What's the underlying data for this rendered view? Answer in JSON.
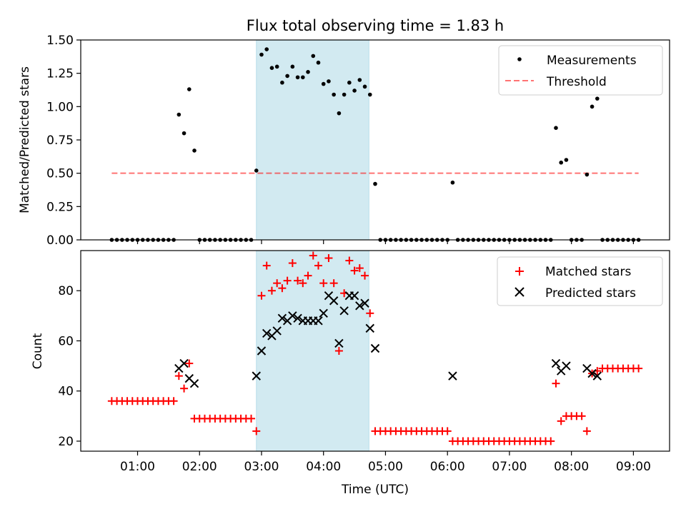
{
  "figure": {
    "title": "Flux total observing time = 1.83 h",
    "xlabel": "Time (UTC)",
    "x_ticks": [
      "01:00",
      "02:00",
      "03:00",
      "04:00",
      "05:00",
      "06:00",
      "07:00",
      "08:00",
      "09:00"
    ],
    "colors": {
      "highlight": "#add8e6",
      "threshold": "#ff0000",
      "measurement": "#000000",
      "matched": "#ff0000",
      "predicted": "#000000"
    }
  },
  "chart_data": [
    {
      "type": "scatter",
      "name": "ratio",
      "ylabel": "Matched/Predicted stars",
      "ylim": [
        0,
        1.5
      ],
      "y_ticks": [
        "0.00",
        "0.25",
        "0.50",
        "0.75",
        "1.00",
        "1.25",
        "1.50"
      ],
      "legend": {
        "placement": "upper-right",
        "entries": [
          "Measurements",
          "Threshold"
        ]
      },
      "highlight_span": {
        "x_start": "02:55",
        "x_end": "04:44"
      },
      "threshold": {
        "name": "Threshold",
        "y": 0.5,
        "x_range": [
          "00:35",
          "09:05"
        ]
      },
      "series": [
        {
          "name": "Measurements",
          "marker": "dot",
          "points": [
            [
              "00:35",
              0
            ],
            [
              "00:40",
              0
            ],
            [
              "00:45",
              0
            ],
            [
              "00:50",
              0
            ],
            [
              "00:55",
              0
            ],
            [
              "01:00",
              0
            ],
            [
              "01:05",
              0
            ],
            [
              "01:10",
              0
            ],
            [
              "01:15",
              0
            ],
            [
              "01:20",
              0
            ],
            [
              "01:25",
              0
            ],
            [
              "01:30",
              0
            ],
            [
              "01:35",
              0
            ],
            [
              "01:40",
              0.94
            ],
            [
              "01:45",
              0.8
            ],
            [
              "01:50",
              1.13
            ],
            [
              "01:55",
              0.67
            ],
            [
              "02:00",
              0
            ],
            [
              "02:05",
              0
            ],
            [
              "02:10",
              0
            ],
            [
              "02:15",
              0
            ],
            [
              "02:20",
              0
            ],
            [
              "02:25",
              0
            ],
            [
              "02:30",
              0
            ],
            [
              "02:35",
              0
            ],
            [
              "02:40",
              0
            ],
            [
              "02:45",
              0
            ],
            [
              "02:50",
              0
            ],
            [
              "02:55",
              0.52
            ],
            [
              "03:00",
              1.39
            ],
            [
              "03:05",
              1.43
            ],
            [
              "03:10",
              1.29
            ],
            [
              "03:15",
              1.3
            ],
            [
              "03:20",
              1.18
            ],
            [
              "03:25",
              1.23
            ],
            [
              "03:30",
              1.3
            ],
            [
              "03:35",
              1.22
            ],
            [
              "03:40",
              1.22
            ],
            [
              "03:45",
              1.26
            ],
            [
              "03:50",
              1.38
            ],
            [
              "03:55",
              1.33
            ],
            [
              "04:00",
              1.17
            ],
            [
              "04:05",
              1.19
            ],
            [
              "04:10",
              1.09
            ],
            [
              "04:15",
              0.95
            ],
            [
              "04:20",
              1.09
            ],
            [
              "04:25",
              1.18
            ],
            [
              "04:30",
              1.12
            ],
            [
              "04:35",
              1.2
            ],
            [
              "04:40",
              1.15
            ],
            [
              "04:45",
              1.09
            ],
            [
              "04:50",
              0.42
            ],
            [
              "04:55",
              0
            ],
            [
              "05:00",
              0
            ],
            [
              "05:05",
              0
            ],
            [
              "05:10",
              0
            ],
            [
              "05:15",
              0
            ],
            [
              "05:20",
              0
            ],
            [
              "05:25",
              0
            ],
            [
              "05:30",
              0
            ],
            [
              "05:35",
              0
            ],
            [
              "05:40",
              0
            ],
            [
              "05:45",
              0
            ],
            [
              "05:50",
              0
            ],
            [
              "05:55",
              0
            ],
            [
              "06:00",
              0
            ],
            [
              "06:05",
              0.43
            ],
            [
              "06:10",
              0
            ],
            [
              "06:15",
              0
            ],
            [
              "06:20",
              0
            ],
            [
              "06:25",
              0
            ],
            [
              "06:30",
              0
            ],
            [
              "06:35",
              0
            ],
            [
              "06:40",
              0
            ],
            [
              "06:45",
              0
            ],
            [
              "06:50",
              0
            ],
            [
              "06:55",
              0
            ],
            [
              "07:00",
              0
            ],
            [
              "07:05",
              0
            ],
            [
              "07:10",
              0
            ],
            [
              "07:15",
              0
            ],
            [
              "07:20",
              0
            ],
            [
              "07:25",
              0
            ],
            [
              "07:30",
              0
            ],
            [
              "07:35",
              0
            ],
            [
              "07:40",
              0
            ],
            [
              "07:45",
              0.84
            ],
            [
              "07:50",
              0.58
            ],
            [
              "07:55",
              0.6
            ],
            [
              "08:00",
              0
            ],
            [
              "08:05",
              0
            ],
            [
              "08:10",
              0
            ],
            [
              "08:15",
              0.49
            ],
            [
              "08:20",
              1.0
            ],
            [
              "08:25",
              1.06
            ],
            [
              "08:30",
              0
            ],
            [
              "08:35",
              0
            ],
            [
              "08:40",
              0
            ],
            [
              "08:45",
              0
            ],
            [
              "08:50",
              0
            ],
            [
              "08:55",
              0
            ],
            [
              "09:00",
              0
            ],
            [
              "09:05",
              0
            ]
          ]
        }
      ]
    },
    {
      "type": "scatter",
      "name": "counts",
      "ylabel": "Count",
      "ylim": [
        16,
        96
      ],
      "y_ticks": [
        "20",
        "40",
        "60",
        "80"
      ],
      "legend": {
        "placement": "upper-right",
        "entries": [
          "Matched stars",
          "Predicted stars"
        ]
      },
      "highlight_span": {
        "x_start": "02:55",
        "x_end": "04:44"
      },
      "series": [
        {
          "name": "Matched stars",
          "marker": "plus",
          "points": [
            [
              "00:35",
              36
            ],
            [
              "00:40",
              36
            ],
            [
              "00:45",
              36
            ],
            [
              "00:50",
              36
            ],
            [
              "00:55",
              36
            ],
            [
              "01:00",
              36
            ],
            [
              "01:05",
              36
            ],
            [
              "01:10",
              36
            ],
            [
              "01:15",
              36
            ],
            [
              "01:20",
              36
            ],
            [
              "01:25",
              36
            ],
            [
              "01:30",
              36
            ],
            [
              "01:35",
              36
            ],
            [
              "01:40",
              46
            ],
            [
              "01:45",
              41
            ],
            [
              "01:50",
              51
            ],
            [
              "01:55",
              29
            ],
            [
              "02:00",
              29
            ],
            [
              "02:05",
              29
            ],
            [
              "02:10",
              29
            ],
            [
              "02:15",
              29
            ],
            [
              "02:20",
              29
            ],
            [
              "02:25",
              29
            ],
            [
              "02:30",
              29
            ],
            [
              "02:35",
              29
            ],
            [
              "02:40",
              29
            ],
            [
              "02:45",
              29
            ],
            [
              "02:50",
              29
            ],
            [
              "02:55",
              24
            ],
            [
              "03:00",
              78
            ],
            [
              "03:05",
              90
            ],
            [
              "03:10",
              80
            ],
            [
              "03:15",
              83
            ],
            [
              "03:20",
              81
            ],
            [
              "03:25",
              84
            ],
            [
              "03:30",
              91
            ],
            [
              "03:35",
              84
            ],
            [
              "03:40",
              83
            ],
            [
              "03:45",
              86
            ],
            [
              "03:50",
              94
            ],
            [
              "03:55",
              90
            ],
            [
              "04:00",
              83
            ],
            [
              "04:05",
              93
            ],
            [
              "04:10",
              83
            ],
            [
              "04:15",
              56
            ],
            [
              "04:20",
              79
            ],
            [
              "04:25",
              92
            ],
            [
              "04:30",
              88
            ],
            [
              "04:35",
              89
            ],
            [
              "04:40",
              86
            ],
            [
              "04:45",
              71
            ],
            [
              "04:50",
              24
            ],
            [
              "04:55",
              24
            ],
            [
              "05:00",
              24
            ],
            [
              "05:05",
              24
            ],
            [
              "05:10",
              24
            ],
            [
              "05:15",
              24
            ],
            [
              "05:20",
              24
            ],
            [
              "05:25",
              24
            ],
            [
              "05:30",
              24
            ],
            [
              "05:35",
              24
            ],
            [
              "05:40",
              24
            ],
            [
              "05:45",
              24
            ],
            [
              "05:50",
              24
            ],
            [
              "05:55",
              24
            ],
            [
              "06:00",
              24
            ],
            [
              "06:05",
              20
            ],
            [
              "06:10",
              20
            ],
            [
              "06:15",
              20
            ],
            [
              "06:20",
              20
            ],
            [
              "06:25",
              20
            ],
            [
              "06:30",
              20
            ],
            [
              "06:35",
              20
            ],
            [
              "06:40",
              20
            ],
            [
              "06:45",
              20
            ],
            [
              "06:50",
              20
            ],
            [
              "06:55",
              20
            ],
            [
              "07:00",
              20
            ],
            [
              "07:05",
              20
            ],
            [
              "07:10",
              20
            ],
            [
              "07:15",
              20
            ],
            [
              "07:20",
              20
            ],
            [
              "07:25",
              20
            ],
            [
              "07:30",
              20
            ],
            [
              "07:35",
              20
            ],
            [
              "07:40",
              20
            ],
            [
              "07:45",
              43
            ],
            [
              "07:50",
              28
            ],
            [
              "07:55",
              30
            ],
            [
              "08:00",
              30
            ],
            [
              "08:05",
              30
            ],
            [
              "08:10",
              30
            ],
            [
              "08:15",
              24
            ],
            [
              "08:20",
              47
            ],
            [
              "08:25",
              48
            ],
            [
              "08:30",
              49
            ],
            [
              "08:35",
              49
            ],
            [
              "08:40",
              49
            ],
            [
              "08:45",
              49
            ],
            [
              "08:50",
              49
            ],
            [
              "08:55",
              49
            ],
            [
              "09:00",
              49
            ],
            [
              "09:05",
              49
            ]
          ]
        },
        {
          "name": "Predicted stars",
          "marker": "x",
          "points": [
            [
              "01:40",
              49
            ],
            [
              "01:45",
              51
            ],
            [
              "01:50",
              45
            ],
            [
              "01:55",
              43
            ],
            [
              "02:55",
              46
            ],
            [
              "03:00",
              56
            ],
            [
              "03:05",
              63
            ],
            [
              "03:10",
              62
            ],
            [
              "03:15",
              64
            ],
            [
              "03:20",
              69
            ],
            [
              "03:25",
              68
            ],
            [
              "03:30",
              70
            ],
            [
              "03:35",
              69
            ],
            [
              "03:40",
              68
            ],
            [
              "03:45",
              68
            ],
            [
              "03:50",
              68
            ],
            [
              "03:55",
              68
            ],
            [
              "04:00",
              71
            ],
            [
              "04:05",
              78
            ],
            [
              "04:10",
              76
            ],
            [
              "04:15",
              59
            ],
            [
              "04:20",
              72
            ],
            [
              "04:25",
              78
            ],
            [
              "04:30",
              78
            ],
            [
              "04:35",
              74
            ],
            [
              "04:40",
              75
            ],
            [
              "04:45",
              65
            ],
            [
              "04:50",
              57
            ],
            [
              "06:05",
              46
            ],
            [
              "07:45",
              51
            ],
            [
              "07:50",
              48
            ],
            [
              "07:55",
              50
            ],
            [
              "08:15",
              49
            ],
            [
              "08:20",
              47
            ],
            [
              "08:25",
              46
            ]
          ]
        }
      ]
    }
  ]
}
